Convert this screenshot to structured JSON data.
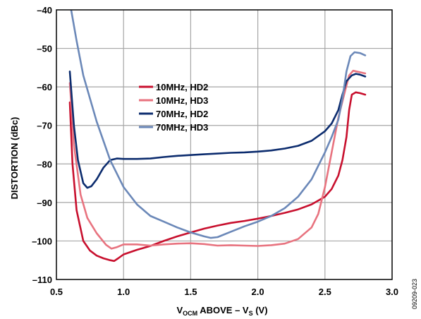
{
  "figure_id": "09209-023",
  "chart_data": {
    "type": "line",
    "xlabel": {
      "main": "V",
      "sub1": "OCM",
      "mid": " ABOVE – V",
      "sub2": "S",
      "tail": " (V)"
    },
    "ylabel": "DISTORTION (dBc)",
    "xlim": [
      0.5,
      3.0
    ],
    "ylim": [
      -110,
      -40
    ],
    "xticks": [
      0.5,
      1.0,
      1.5,
      2.0,
      2.5,
      3.0
    ],
    "xtick_labels": [
      "0.5",
      "1.0",
      "1.5",
      "2.0",
      "2.5",
      "3.0"
    ],
    "yticks": [
      -110,
      -100,
      -90,
      -80,
      -70,
      -60,
      -50,
      -40
    ],
    "ytick_labels": [
      "–110",
      "–100",
      "–90",
      "–80",
      "–70",
      "–60",
      "–50",
      "–40"
    ],
    "grid": true,
    "legend_position": "center-left",
    "series": [
      {
        "name": "10MHz, HD2",
        "color": "#c8102e",
        "points": [
          [
            0.6,
            -64
          ],
          [
            0.62,
            -80
          ],
          [
            0.65,
            -92
          ],
          [
            0.7,
            -100
          ],
          [
            0.75,
            -102.5
          ],
          [
            0.8,
            -103.8
          ],
          [
            0.85,
            -104.5
          ],
          [
            0.9,
            -105
          ],
          [
            0.93,
            -105.2
          ],
          [
            0.96,
            -104.5
          ],
          [
            1.0,
            -103.5
          ],
          [
            1.1,
            -102.3
          ],
          [
            1.2,
            -101.3
          ],
          [
            1.3,
            -100
          ],
          [
            1.4,
            -98.8
          ],
          [
            1.5,
            -97.8
          ],
          [
            1.6,
            -96.8
          ],
          [
            1.7,
            -96
          ],
          [
            1.8,
            -95.3
          ],
          [
            1.9,
            -94.8
          ],
          [
            2.0,
            -94.2
          ],
          [
            2.1,
            -93.5
          ],
          [
            2.2,
            -92.7
          ],
          [
            2.3,
            -91.8
          ],
          [
            2.4,
            -90.5
          ],
          [
            2.5,
            -88.5
          ],
          [
            2.55,
            -86.5
          ],
          [
            2.6,
            -83
          ],
          [
            2.63,
            -79
          ],
          [
            2.66,
            -73
          ],
          [
            2.68,
            -66
          ],
          [
            2.7,
            -62
          ],
          [
            2.73,
            -61.4
          ],
          [
            2.76,
            -61.6
          ],
          [
            2.8,
            -62
          ]
        ]
      },
      {
        "name": "10MHz, HD3",
        "color": "#e8737f",
        "points": [
          [
            0.6,
            -59
          ],
          [
            0.63,
            -75
          ],
          [
            0.68,
            -88
          ],
          [
            0.73,
            -94
          ],
          [
            0.8,
            -98
          ],
          [
            0.87,
            -101
          ],
          [
            0.91,
            -102
          ],
          [
            0.95,
            -101.6
          ],
          [
            1.0,
            -100.9
          ],
          [
            1.1,
            -100.9
          ],
          [
            1.2,
            -101.2
          ],
          [
            1.3,
            -100.9
          ],
          [
            1.4,
            -100.7
          ],
          [
            1.5,
            -100.6
          ],
          [
            1.6,
            -100.8
          ],
          [
            1.7,
            -101.2
          ],
          [
            1.8,
            -101.1
          ],
          [
            1.9,
            -101.2
          ],
          [
            2.0,
            -101.3
          ],
          [
            2.1,
            -101.1
          ],
          [
            2.2,
            -100.7
          ],
          [
            2.3,
            -99.5
          ],
          [
            2.4,
            -96.5
          ],
          [
            2.45,
            -93
          ],
          [
            2.5,
            -86
          ],
          [
            2.55,
            -77
          ],
          [
            2.6,
            -68
          ],
          [
            2.65,
            -61
          ],
          [
            2.68,
            -57
          ],
          [
            2.71,
            -55.8
          ],
          [
            2.75,
            -56.1
          ],
          [
            2.8,
            -56.5
          ]
        ]
      },
      {
        "name": "70MHz, HD2",
        "color": "#0c2c6e",
        "points": [
          [
            0.6,
            -56
          ],
          [
            0.63,
            -70
          ],
          [
            0.66,
            -79
          ],
          [
            0.7,
            -85
          ],
          [
            0.73,
            -86.2
          ],
          [
            0.76,
            -85.8
          ],
          [
            0.8,
            -84
          ],
          [
            0.85,
            -81
          ],
          [
            0.9,
            -79
          ],
          [
            0.95,
            -78.6
          ],
          [
            1.0,
            -78.7
          ],
          [
            1.1,
            -78.7
          ],
          [
            1.2,
            -78.6
          ],
          [
            1.3,
            -78.2
          ],
          [
            1.4,
            -77.9
          ],
          [
            1.5,
            -77.7
          ],
          [
            1.6,
            -77.5
          ],
          [
            1.7,
            -77.3
          ],
          [
            1.8,
            -77.1
          ],
          [
            1.9,
            -77.0
          ],
          [
            2.0,
            -76.8
          ],
          [
            2.1,
            -76.5
          ],
          [
            2.2,
            -76.0
          ],
          [
            2.3,
            -75.3
          ],
          [
            2.4,
            -74.0
          ],
          [
            2.5,
            -71.5
          ],
          [
            2.55,
            -69.5
          ],
          [
            2.6,
            -66
          ],
          [
            2.63,
            -62
          ],
          [
            2.66,
            -58.5
          ],
          [
            2.7,
            -57
          ],
          [
            2.73,
            -56.6
          ],
          [
            2.76,
            -56.8
          ],
          [
            2.8,
            -57.3
          ]
        ]
      },
      {
        "name": "70MHz, HD3",
        "color": "#6b88b8",
        "points": [
          [
            0.61,
            -40
          ],
          [
            0.65,
            -48
          ],
          [
            0.7,
            -57
          ],
          [
            0.8,
            -69
          ],
          [
            0.9,
            -79
          ],
          [
            1.0,
            -86
          ],
          [
            1.1,
            -90.5
          ],
          [
            1.2,
            -93.5
          ],
          [
            1.3,
            -95
          ],
          [
            1.4,
            -96.5
          ],
          [
            1.5,
            -97.8
          ],
          [
            1.6,
            -98.8
          ],
          [
            1.65,
            -99.2
          ],
          [
            1.7,
            -99
          ],
          [
            1.8,
            -97.6
          ],
          [
            1.9,
            -96.2
          ],
          [
            2.0,
            -95
          ],
          [
            2.1,
            -93.5
          ],
          [
            2.2,
            -91.5
          ],
          [
            2.3,
            -88.5
          ],
          [
            2.4,
            -84
          ],
          [
            2.5,
            -77
          ],
          [
            2.55,
            -73
          ],
          [
            2.6,
            -68.5
          ],
          [
            2.63,
            -63
          ],
          [
            2.66,
            -56
          ],
          [
            2.69,
            -52
          ],
          [
            2.72,
            -51.0
          ],
          [
            2.76,
            -51.2
          ],
          [
            2.8,
            -51.8
          ]
        ]
      }
    ]
  }
}
